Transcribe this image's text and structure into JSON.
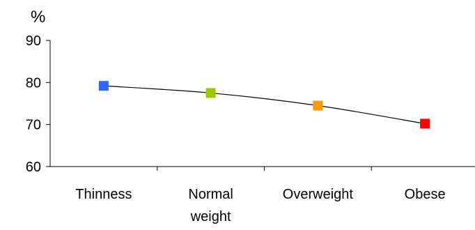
{
  "chart_data": {
    "type": "line",
    "title": "",
    "xlabel": "",
    "ylabel": "%",
    "ylim": [
      60,
      90
    ],
    "yticks": [
      60,
      70,
      80,
      90
    ],
    "grid": false,
    "legend": "none",
    "categories": [
      [
        "Thinness"
      ],
      [
        "Normal",
        "weight"
      ],
      [
        "Overweight"
      ],
      [
        "Obese"
      ]
    ],
    "series": [
      {
        "values": [
          79.2,
          77.5,
          74.5,
          70.2
        ],
        "marker": "square",
        "line_color": "#000000",
        "point_colors": [
          "#3366ff",
          "#99cc00",
          "#ff9900",
          "#ff0000"
        ]
      }
    ]
  }
}
